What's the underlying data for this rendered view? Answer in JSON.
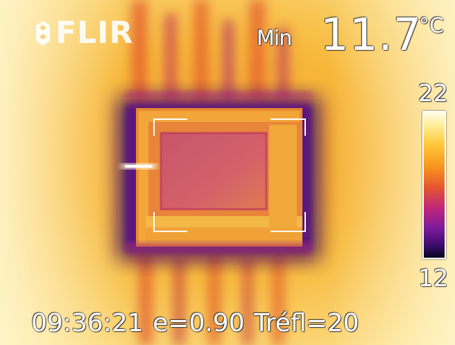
{
  "camera": {
    "brand": "FLIR"
  },
  "measurement": {
    "label": "Min",
    "value": "11.7",
    "unit": "°C"
  },
  "scale": {
    "max": "22",
    "min": "12"
  },
  "status": {
    "time": "09:36:21",
    "emissivity": "e=0.90",
    "reflected_temp": "Tréfl=20"
  }
}
